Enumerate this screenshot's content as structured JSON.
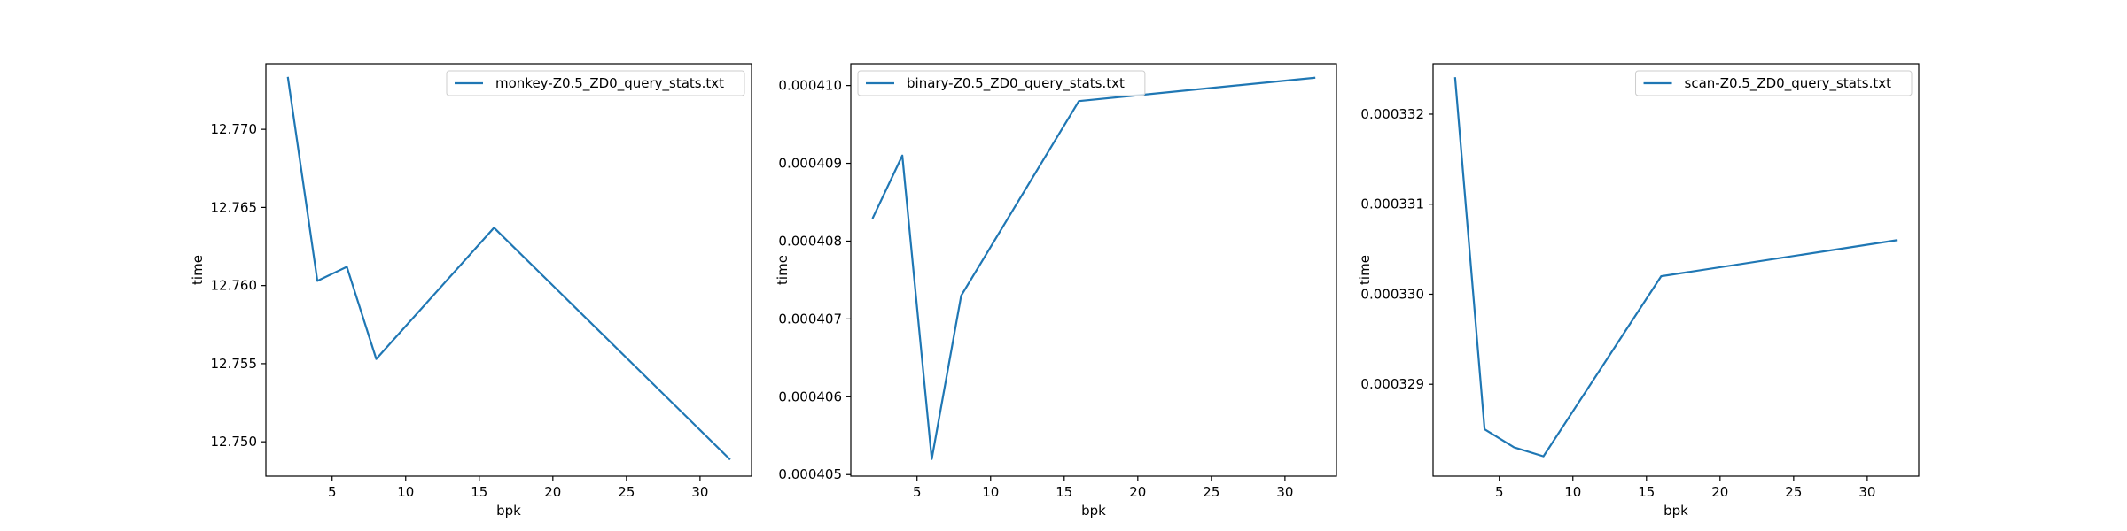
{
  "chart_data": [
    {
      "type": "line",
      "xlabel": "bpk",
      "ylabel": "time",
      "xlim": [
        0.5,
        33.5
      ],
      "ylim": [
        12.7478,
        12.7742
      ],
      "xticks": [
        5,
        10,
        15,
        20,
        25,
        30
      ],
      "yticks": [
        12.75,
        12.755,
        12.76,
        12.765,
        12.77
      ],
      "ytick_labels": [
        "12.750",
        "12.755",
        "12.760",
        "12.765",
        "12.770"
      ],
      "legend_position": "upper right",
      "series": [
        {
          "name": "monkey-Z0.5_ZD0_query_stats.txt",
          "color": "#1f77b4",
          "x": [
            2,
            4,
            6,
            8,
            16,
            32
          ],
          "y": [
            12.7733,
            12.7603,
            12.7612,
            12.7553,
            12.7637,
            12.7489
          ]
        }
      ]
    },
    {
      "type": "line",
      "xlabel": "bpk",
      "ylabel": "time",
      "xlim": [
        0.5,
        33.5
      ],
      "ylim": [
        0.00040498,
        0.00041028
      ],
      "xticks": [
        5,
        10,
        15,
        20,
        25,
        30
      ],
      "yticks": [
        0.000405,
        0.000406,
        0.000407,
        0.000408,
        0.000409,
        0.00041
      ],
      "ytick_labels": [
        "0.000405",
        "0.000406",
        "0.000407",
        "0.000408",
        "0.000409",
        "0.000410"
      ],
      "legend_position": "upper left",
      "series": [
        {
          "name": "binary-Z0.5_ZD0_query_stats.txt",
          "color": "#1f77b4",
          "x": [
            2,
            4,
            6,
            8,
            16,
            32
          ],
          "y": [
            0.0004083,
            0.0004091,
            0.0004052,
            0.0004073,
            0.0004098,
            0.0004101
          ]
        }
      ]
    },
    {
      "type": "line",
      "xlabel": "bpk",
      "ylabel": "time",
      "xlim": [
        0.5,
        33.5
      ],
      "ylim": [
        0.00032798,
        0.00033256
      ],
      "xticks": [
        5,
        10,
        15,
        20,
        25,
        30
      ],
      "yticks": [
        0.000329,
        0.00033,
        0.000331,
        0.000332
      ],
      "ytick_labels": [
        "0.000329",
        "0.000330",
        "0.000331",
        "0.000332"
      ],
      "legend_position": "upper right",
      "series": [
        {
          "name": "scan-Z0.5_ZD0_query_stats.txt",
          "color": "#1f77b4",
          "x": [
            2,
            4,
            6,
            8,
            16,
            32
          ],
          "y": [
            0.0003324,
            0.0003285,
            0.0003283,
            0.0003282,
            0.0003302,
            0.0003306
          ]
        }
      ]
    }
  ]
}
